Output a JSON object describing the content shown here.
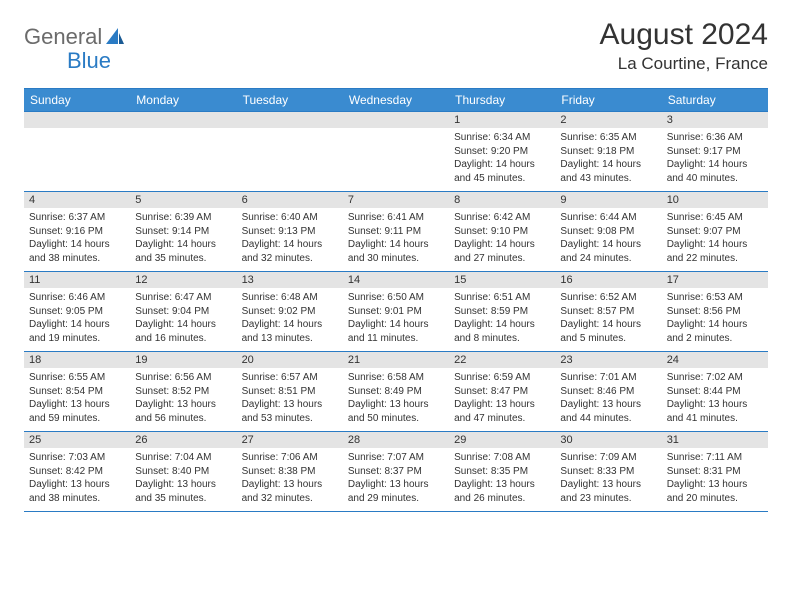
{
  "logo": {
    "part1": "General",
    "part2": "Blue"
  },
  "title": "August 2024",
  "location": "La Courtine, France",
  "colors": {
    "header_bg": "#3a8bd0",
    "header_text": "#ffffff",
    "border": "#2a7bc4",
    "daynum_bg": "#e4e4e4",
    "text": "#333333",
    "logo_gray": "#6b6b6b",
    "logo_blue": "#2a7bc4"
  },
  "days_of_week": [
    "Sunday",
    "Monday",
    "Tuesday",
    "Wednesday",
    "Thursday",
    "Friday",
    "Saturday"
  ],
  "weeks": [
    [
      null,
      null,
      null,
      null,
      {
        "n": "1",
        "sr": "Sunrise: 6:34 AM",
        "ss": "Sunset: 9:20 PM",
        "d1": "Daylight: 14 hours",
        "d2": "and 45 minutes."
      },
      {
        "n": "2",
        "sr": "Sunrise: 6:35 AM",
        "ss": "Sunset: 9:18 PM",
        "d1": "Daylight: 14 hours",
        "d2": "and 43 minutes."
      },
      {
        "n": "3",
        "sr": "Sunrise: 6:36 AM",
        "ss": "Sunset: 9:17 PM",
        "d1": "Daylight: 14 hours",
        "d2": "and 40 minutes."
      }
    ],
    [
      {
        "n": "4",
        "sr": "Sunrise: 6:37 AM",
        "ss": "Sunset: 9:16 PM",
        "d1": "Daylight: 14 hours",
        "d2": "and 38 minutes."
      },
      {
        "n": "5",
        "sr": "Sunrise: 6:39 AM",
        "ss": "Sunset: 9:14 PM",
        "d1": "Daylight: 14 hours",
        "d2": "and 35 minutes."
      },
      {
        "n": "6",
        "sr": "Sunrise: 6:40 AM",
        "ss": "Sunset: 9:13 PM",
        "d1": "Daylight: 14 hours",
        "d2": "and 32 minutes."
      },
      {
        "n": "7",
        "sr": "Sunrise: 6:41 AM",
        "ss": "Sunset: 9:11 PM",
        "d1": "Daylight: 14 hours",
        "d2": "and 30 minutes."
      },
      {
        "n": "8",
        "sr": "Sunrise: 6:42 AM",
        "ss": "Sunset: 9:10 PM",
        "d1": "Daylight: 14 hours",
        "d2": "and 27 minutes."
      },
      {
        "n": "9",
        "sr": "Sunrise: 6:44 AM",
        "ss": "Sunset: 9:08 PM",
        "d1": "Daylight: 14 hours",
        "d2": "and 24 minutes."
      },
      {
        "n": "10",
        "sr": "Sunrise: 6:45 AM",
        "ss": "Sunset: 9:07 PM",
        "d1": "Daylight: 14 hours",
        "d2": "and 22 minutes."
      }
    ],
    [
      {
        "n": "11",
        "sr": "Sunrise: 6:46 AM",
        "ss": "Sunset: 9:05 PM",
        "d1": "Daylight: 14 hours",
        "d2": "and 19 minutes."
      },
      {
        "n": "12",
        "sr": "Sunrise: 6:47 AM",
        "ss": "Sunset: 9:04 PM",
        "d1": "Daylight: 14 hours",
        "d2": "and 16 minutes."
      },
      {
        "n": "13",
        "sr": "Sunrise: 6:48 AM",
        "ss": "Sunset: 9:02 PM",
        "d1": "Daylight: 14 hours",
        "d2": "and 13 minutes."
      },
      {
        "n": "14",
        "sr": "Sunrise: 6:50 AM",
        "ss": "Sunset: 9:01 PM",
        "d1": "Daylight: 14 hours",
        "d2": "and 11 minutes."
      },
      {
        "n": "15",
        "sr": "Sunrise: 6:51 AM",
        "ss": "Sunset: 8:59 PM",
        "d1": "Daylight: 14 hours",
        "d2": "and 8 minutes."
      },
      {
        "n": "16",
        "sr": "Sunrise: 6:52 AM",
        "ss": "Sunset: 8:57 PM",
        "d1": "Daylight: 14 hours",
        "d2": "and 5 minutes."
      },
      {
        "n": "17",
        "sr": "Sunrise: 6:53 AM",
        "ss": "Sunset: 8:56 PM",
        "d1": "Daylight: 14 hours",
        "d2": "and 2 minutes."
      }
    ],
    [
      {
        "n": "18",
        "sr": "Sunrise: 6:55 AM",
        "ss": "Sunset: 8:54 PM",
        "d1": "Daylight: 13 hours",
        "d2": "and 59 minutes."
      },
      {
        "n": "19",
        "sr": "Sunrise: 6:56 AM",
        "ss": "Sunset: 8:52 PM",
        "d1": "Daylight: 13 hours",
        "d2": "and 56 minutes."
      },
      {
        "n": "20",
        "sr": "Sunrise: 6:57 AM",
        "ss": "Sunset: 8:51 PM",
        "d1": "Daylight: 13 hours",
        "d2": "and 53 minutes."
      },
      {
        "n": "21",
        "sr": "Sunrise: 6:58 AM",
        "ss": "Sunset: 8:49 PM",
        "d1": "Daylight: 13 hours",
        "d2": "and 50 minutes."
      },
      {
        "n": "22",
        "sr": "Sunrise: 6:59 AM",
        "ss": "Sunset: 8:47 PM",
        "d1": "Daylight: 13 hours",
        "d2": "and 47 minutes."
      },
      {
        "n": "23",
        "sr": "Sunrise: 7:01 AM",
        "ss": "Sunset: 8:46 PM",
        "d1": "Daylight: 13 hours",
        "d2": "and 44 minutes."
      },
      {
        "n": "24",
        "sr": "Sunrise: 7:02 AM",
        "ss": "Sunset: 8:44 PM",
        "d1": "Daylight: 13 hours",
        "d2": "and 41 minutes."
      }
    ],
    [
      {
        "n": "25",
        "sr": "Sunrise: 7:03 AM",
        "ss": "Sunset: 8:42 PM",
        "d1": "Daylight: 13 hours",
        "d2": "and 38 minutes."
      },
      {
        "n": "26",
        "sr": "Sunrise: 7:04 AM",
        "ss": "Sunset: 8:40 PM",
        "d1": "Daylight: 13 hours",
        "d2": "and 35 minutes."
      },
      {
        "n": "27",
        "sr": "Sunrise: 7:06 AM",
        "ss": "Sunset: 8:38 PM",
        "d1": "Daylight: 13 hours",
        "d2": "and 32 minutes."
      },
      {
        "n": "28",
        "sr": "Sunrise: 7:07 AM",
        "ss": "Sunset: 8:37 PM",
        "d1": "Daylight: 13 hours",
        "d2": "and 29 minutes."
      },
      {
        "n": "29",
        "sr": "Sunrise: 7:08 AM",
        "ss": "Sunset: 8:35 PM",
        "d1": "Daylight: 13 hours",
        "d2": "and 26 minutes."
      },
      {
        "n": "30",
        "sr": "Sunrise: 7:09 AM",
        "ss": "Sunset: 8:33 PM",
        "d1": "Daylight: 13 hours",
        "d2": "and 23 minutes."
      },
      {
        "n": "31",
        "sr": "Sunrise: 7:11 AM",
        "ss": "Sunset: 8:31 PM",
        "d1": "Daylight: 13 hours",
        "d2": "and 20 minutes."
      }
    ]
  ]
}
